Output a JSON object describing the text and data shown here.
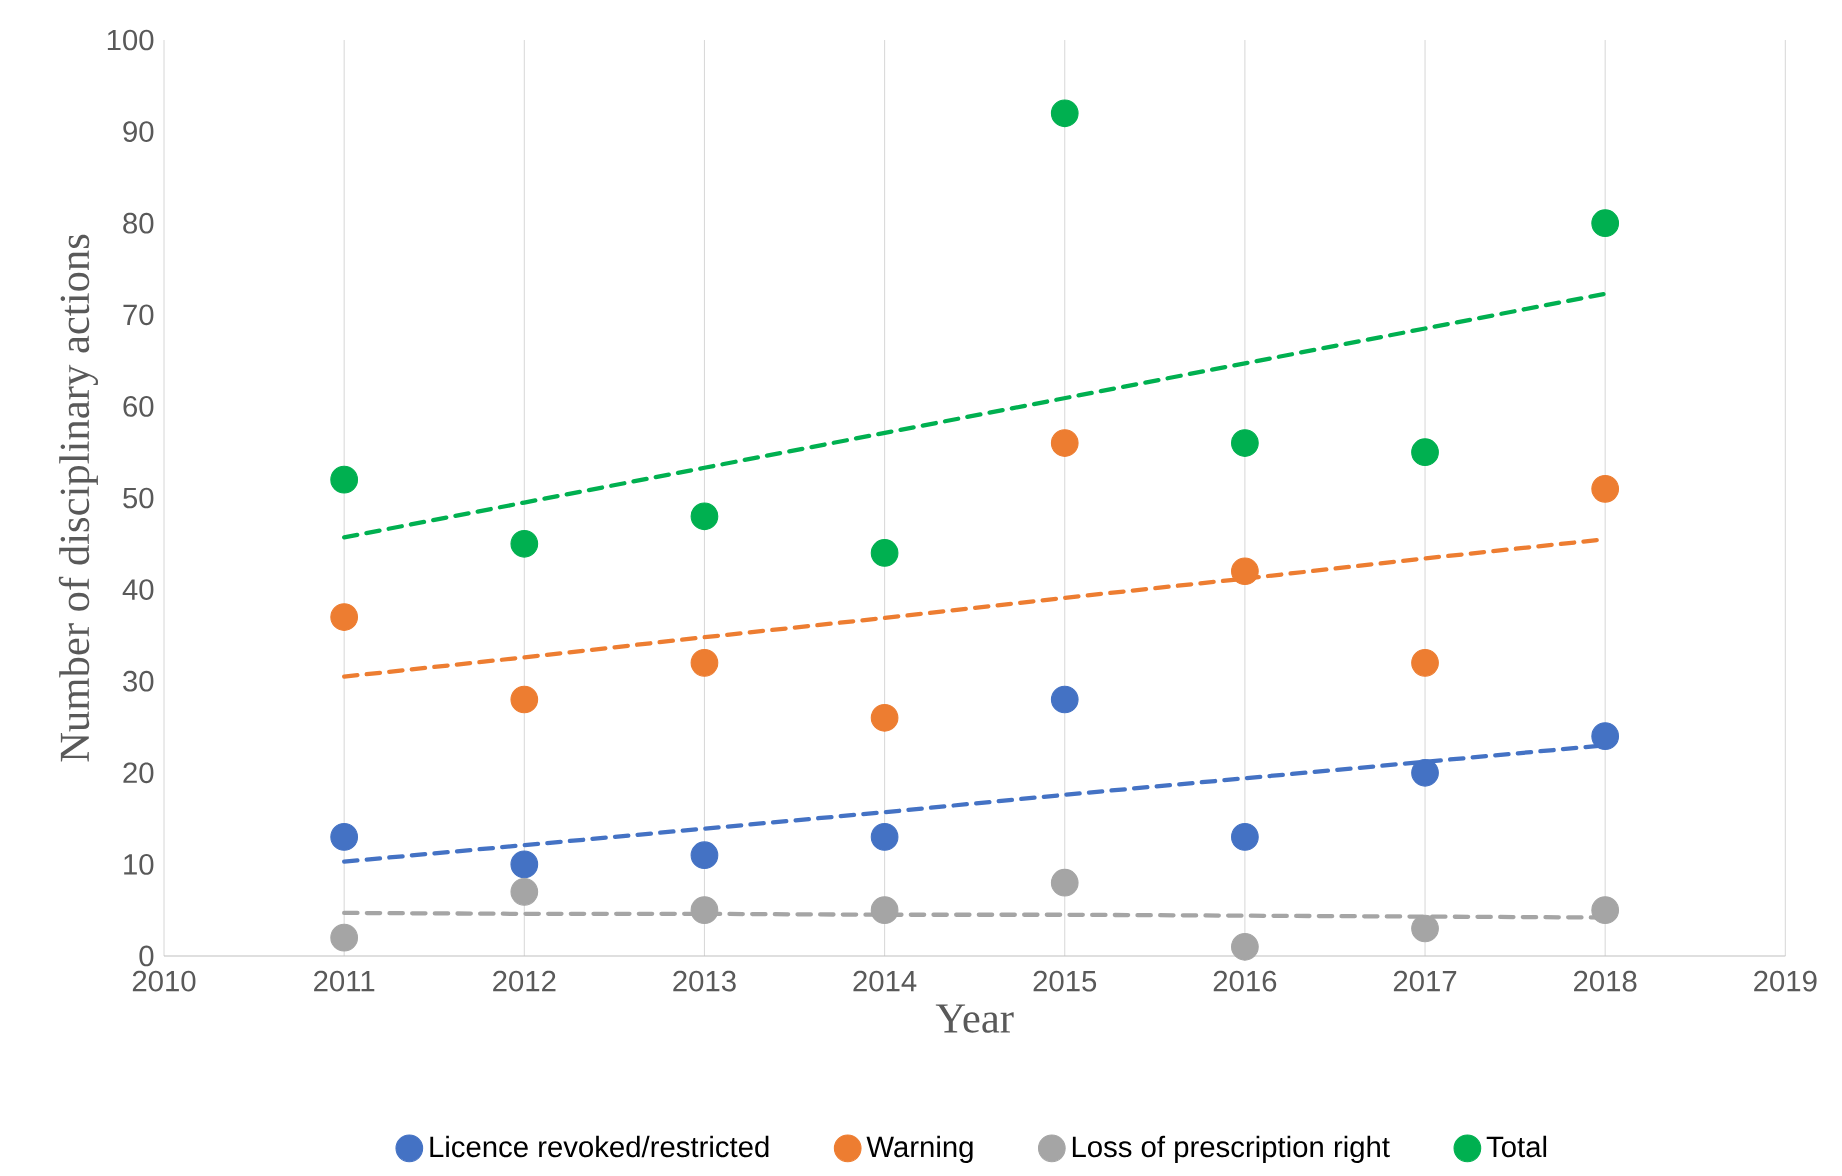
{
  "chart_data": {
    "type": "scatter",
    "xlabel": "Year",
    "ylabel": "Number of disciplinary actions",
    "x": [
      2011,
      2012,
      2013,
      2014,
      2015,
      2016,
      2017,
      2018
    ],
    "series": [
      {
        "name": "Licence revoked/restricted",
        "color": "#4472c4",
        "marker": "circle",
        "values": [
          13,
          10,
          11,
          13,
          28,
          13,
          20,
          24
        ]
      },
      {
        "name": "Warning",
        "color": "#ed7d31",
        "marker": "circle",
        "values": [
          37,
          28,
          32,
          26,
          56,
          42,
          32,
          51
        ]
      },
      {
        "name": "Loss of prescription right",
        "color": "#a5a5a5",
        "marker": "circle",
        "values": [
          2,
          7,
          5,
          5,
          8,
          1,
          3,
          5
        ]
      },
      {
        "name": "Total",
        "color": "#00b050",
        "marker": "circle",
        "values": [
          52,
          45,
          48,
          44,
          92,
          56,
          55,
          80
        ]
      },
      {
        "type": "line",
        "color": "#4472c4",
        "line_style": "dashed",
        "marker": "none",
        "values": [
          10.3,
          12.1,
          13.9,
          15.7,
          17.6,
          19.4,
          21.2,
          23
        ]
      },
      {
        "type": "line",
        "color": "#ed7d31",
        "line_style": "dashed",
        "marker": "none",
        "values": [
          30.5,
          32.6,
          34.8,
          36.9,
          39.1,
          41.2,
          43.4,
          45.5
        ]
      },
      {
        "type": "line",
        "color": "#a5a5a5",
        "line_style": "dashed",
        "marker": "none",
        "values": [
          4.7,
          4.6,
          4.6,
          4.5,
          4.5,
          4.4,
          4.3,
          4.2
        ]
      },
      {
        "type": "line",
        "color": "#00b050",
        "line_style": "dashed",
        "marker": "none",
        "values": [
          45.7,
          49.5,
          53.3,
          57.1,
          60.9,
          64.7,
          68.5,
          72.3
        ]
      }
    ],
    "xlim": [
      2010,
      2019
    ],
    "xticks": [
      2010,
      2011,
      2012,
      2013,
      2014,
      2015,
      2016,
      2017,
      2018,
      2019
    ],
    "ylim": [
      0,
      100
    ],
    "yticks": [
      0,
      10,
      20,
      30,
      40,
      50,
      60,
      70,
      80,
      90,
      100
    ],
    "grid": "x",
    "legend": "bottom"
  }
}
